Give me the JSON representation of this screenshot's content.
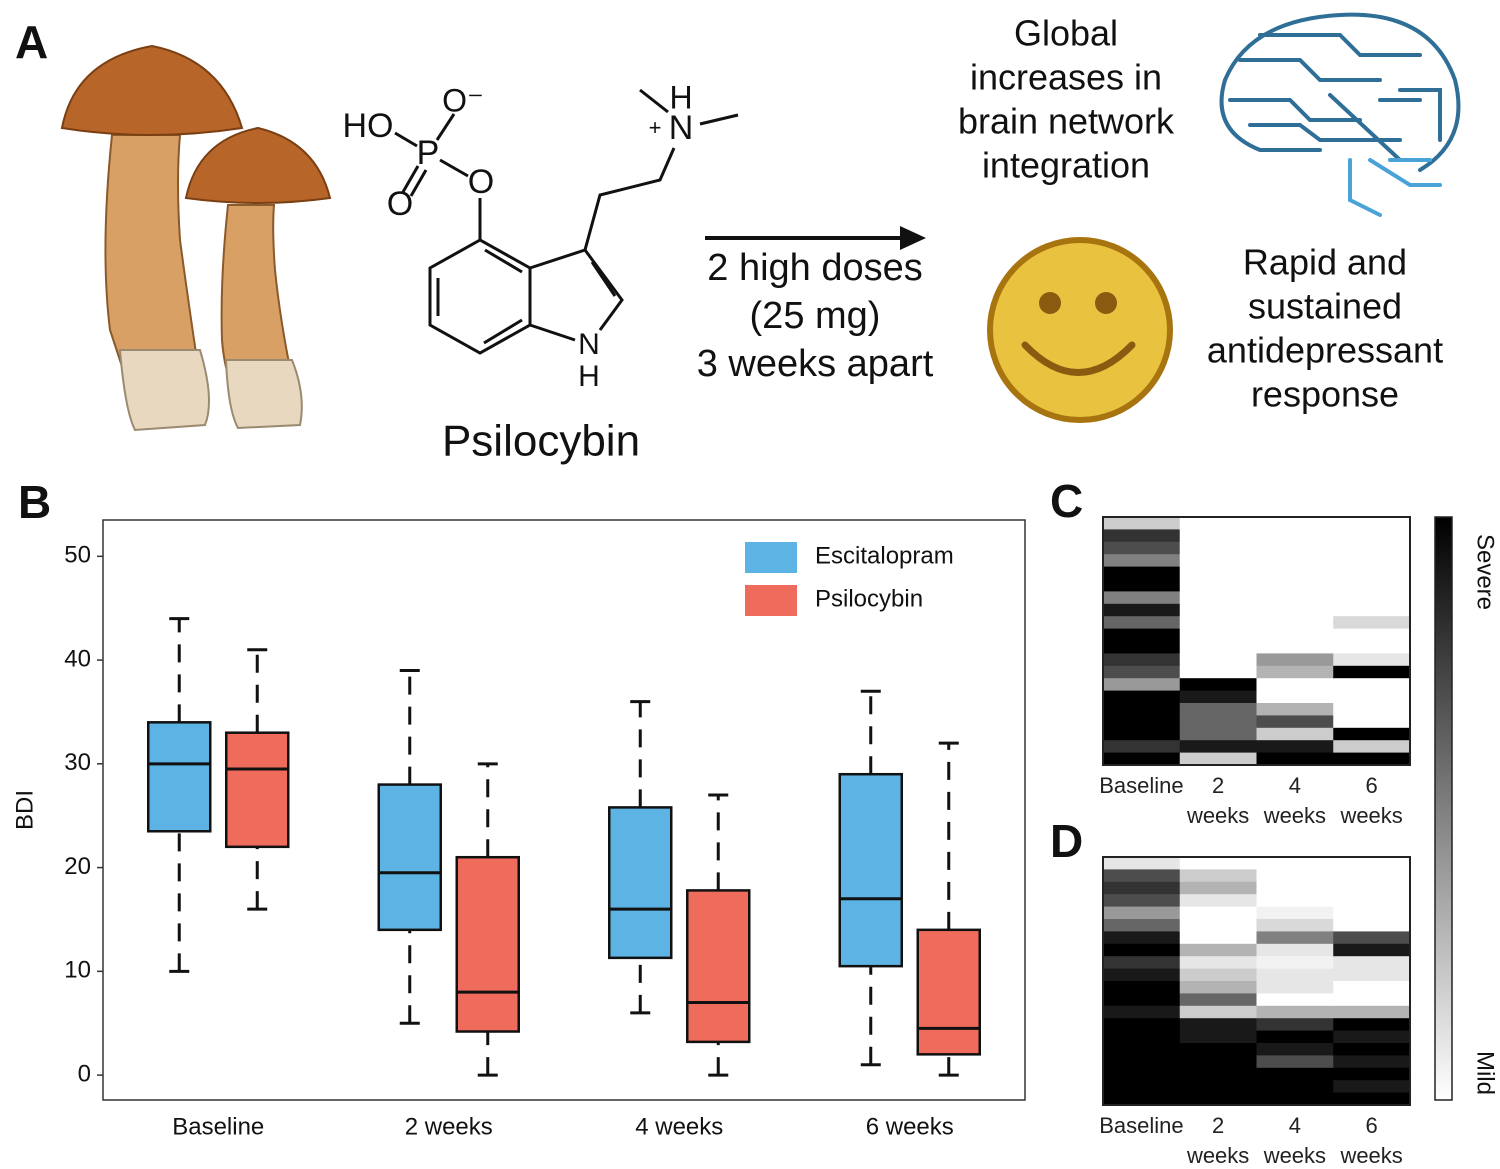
{
  "panel_a": {
    "label": "A",
    "molecule_atoms": [
      "HO",
      "O⁻",
      "P",
      "O",
      "O",
      "H",
      "+",
      "N",
      "N",
      "H"
    ],
    "molecule_name": "Psilocybin",
    "dose_lines": [
      "2 high doses",
      "(25 mg)",
      "3 weeks apart"
    ],
    "brain_lines": [
      "Global",
      "increases in",
      "brain network",
      "integration"
    ],
    "mood_lines": [
      "Rapid and",
      "sustained",
      "antidepressant",
      "response"
    ]
  },
  "chart_data": [
    {
      "type": "box",
      "label": "B",
      "ylabel": "BDI",
      "categories": [
        "Baseline",
        "2 weeks",
        "4 weeks",
        "6 weeks"
      ],
      "series": [
        {
          "name": "Escitalopram",
          "color": "#5db3e4",
          "values": [
            [
              10,
              23.5,
              30,
              34,
              44
            ],
            [
              5,
              14,
              19.5,
              28,
              39
            ],
            [
              6,
              11.3,
              16,
              25.8,
              36
            ],
            [
              1,
              10.5,
              17,
              29,
              37
            ]
          ]
        },
        {
          "name": "Psilocybin",
          "color": "#ef6b5b",
          "values": [
            [
              16,
              22,
              29.5,
              33,
              41
            ],
            [
              0,
              4.2,
              8,
              21,
              30
            ],
            [
              0,
              3.2,
              7,
              17.8,
              27
            ],
            [
              0,
              2,
              4.5,
              14,
              32
            ]
          ]
        }
      ],
      "ylim": [
        -2.4,
        53.5
      ],
      "yticks": [
        0,
        10,
        20,
        30,
        40,
        50
      ],
      "legend": "top-right"
    },
    {
      "type": "heatmap",
      "label": "C",
      "categories": [
        "Baseline",
        "2 weeks",
        "4 weeks",
        "6 weeks"
      ],
      "values": [
        [
          0.2,
          0.8,
          0.7,
          0.5,
          1,
          1,
          0.5,
          0.9,
          0.6,
          1,
          1,
          0.8,
          0.7,
          0.4,
          1,
          1,
          1,
          1,
          0.8,
          1
        ],
        [
          0,
          0,
          0,
          0,
          0,
          0,
          0,
          0,
          0,
          0,
          0,
          0,
          0,
          1,
          0.9,
          0.6,
          0.6,
          0.6,
          0.9,
          0.2
        ],
        [
          0,
          0,
          0,
          0,
          0,
          0,
          0,
          0,
          0,
          0,
          0,
          0.4,
          0.3,
          0,
          0,
          0.3,
          0.7,
          0.2,
          0.9,
          1
        ],
        [
          0,
          0,
          0,
          0,
          0,
          0,
          0,
          0,
          0.15,
          0,
          0,
          0.1,
          1,
          0,
          0,
          0,
          0,
          1,
          0.2,
          1
        ]
      ]
    },
    {
      "type": "heatmap",
      "label": "D",
      "categories": [
        "Baseline",
        "2 weeks",
        "4 weeks",
        "6 weeks"
      ],
      "values": [
        [
          0.1,
          0.7,
          0.8,
          0.7,
          0.4,
          0.6,
          0.9,
          1,
          0.8,
          0.9,
          1,
          1,
          0.9,
          1,
          1,
          1,
          1,
          1,
          1,
          1
        ],
        [
          0,
          0.2,
          0.3,
          0.1,
          0,
          0,
          0,
          0.3,
          0.1,
          0.2,
          0.3,
          0.6,
          0.2,
          0.9,
          0.9,
          1,
          1,
          1,
          1,
          1
        ],
        [
          0,
          0,
          0,
          0,
          0.05,
          0.15,
          0.5,
          0.1,
          0.05,
          0.1,
          0.1,
          0,
          0.3,
          0.8,
          1,
          0.9,
          0.7,
          1,
          1,
          1
        ],
        [
          0,
          0,
          0,
          0,
          0,
          0,
          0.7,
          0.9,
          0.1,
          0.1,
          0,
          0,
          0.3,
          1,
          0.9,
          1,
          0.9,
          1,
          0.9,
          1
        ]
      ]
    }
  ],
  "colorbar": {
    "max_label": "Severe",
    "min_label": "Mild"
  }
}
